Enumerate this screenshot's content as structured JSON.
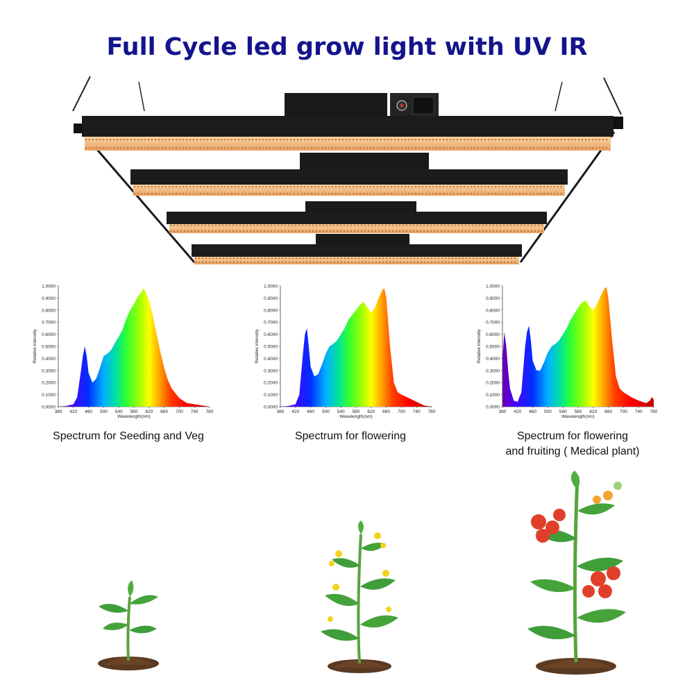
{
  "page": {
    "headline": "Full Cycle led grow light with UV IR"
  },
  "colors": {
    "headline": "#14148c",
    "fixture_body": "#1a1a1a",
    "led_glow": "#f3b878",
    "leaf": "#3f9d3a",
    "soil": "#5b3a22",
    "tomato": "#e0402a",
    "flower": "#f4d21c"
  },
  "icons": [
    "led-fixture-image",
    "seedling-plant-image",
    "flowering-plant-image",
    "fruiting-tomato-plant-image"
  ],
  "chart_data": [
    {
      "type": "area",
      "title": "Spectrum for Seeding and Veg",
      "xlabel": "Wavelength(nm)",
      "ylabel": "Relative intensity",
      "xlim": [
        380,
        780
      ],
      "ylim": [
        0,
        1
      ],
      "x_ticks": [
        "380",
        "420",
        "460",
        "500",
        "540",
        "580",
        "620",
        "660",
        "700",
        "740",
        "780"
      ],
      "y_ticks": [
        "0.0000",
        "0.1000",
        "0.2000",
        "0.3000",
        "0.4000",
        "0.5000",
        "0.6000",
        "0.7000",
        "0.8000",
        "0.9000",
        "1.0000"
      ],
      "grid": false,
      "fill": "rainbow",
      "series": [
        {
          "x": [
            380,
            400,
            420,
            430,
            440,
            445,
            450,
            455,
            460,
            470,
            480,
            490,
            500,
            510,
            520,
            530,
            540,
            550,
            560,
            570,
            580,
            590,
            600,
            605,
            610,
            620,
            630,
            640,
            650,
            660,
            670,
            680,
            700,
            720,
            740,
            760,
            780
          ],
          "y": [
            0,
            0.005,
            0.02,
            0.08,
            0.3,
            0.42,
            0.5,
            0.42,
            0.28,
            0.2,
            0.23,
            0.32,
            0.42,
            0.44,
            0.47,
            0.53,
            0.58,
            0.64,
            0.73,
            0.8,
            0.85,
            0.91,
            0.95,
            0.98,
            0.96,
            0.88,
            0.75,
            0.6,
            0.45,
            0.32,
            0.22,
            0.15,
            0.07,
            0.03,
            0.02,
            0.01,
            0
          ]
        }
      ]
    },
    {
      "type": "area",
      "title": "Spectrum for flowering",
      "xlabel": "Wavelength(nm)",
      "ylabel": "Relative intensity",
      "xlim": [
        380,
        780
      ],
      "ylim": [
        0,
        1
      ],
      "x_ticks": [
        "380",
        "420",
        "460",
        "500",
        "540",
        "580",
        "620",
        "660",
        "700",
        "740",
        "780"
      ],
      "y_ticks": [
        "0.0000",
        "0.1000",
        "0.2000",
        "0.3000",
        "0.4000",
        "0.5000",
        "0.6000",
        "0.7000",
        "0.8000",
        "0.9000",
        "1.0000"
      ],
      "grid": false,
      "fill": "rainbow",
      "series": [
        {
          "x": [
            380,
            400,
            420,
            430,
            440,
            445,
            450,
            455,
            460,
            470,
            480,
            490,
            500,
            510,
            520,
            530,
            540,
            550,
            560,
            570,
            580,
            590,
            600,
            610,
            620,
            630,
            640,
            650,
            655,
            660,
            670,
            680,
            690,
            700,
            720,
            740,
            760,
            780
          ],
          "y": [
            0,
            0.005,
            0.02,
            0.1,
            0.45,
            0.6,
            0.65,
            0.5,
            0.33,
            0.25,
            0.27,
            0.35,
            0.44,
            0.5,
            0.52,
            0.55,
            0.6,
            0.65,
            0.72,
            0.76,
            0.8,
            0.84,
            0.87,
            0.82,
            0.78,
            0.82,
            0.9,
            0.97,
            0.98,
            0.9,
            0.5,
            0.2,
            0.12,
            0.1,
            0.07,
            0.04,
            0.01,
            0
          ]
        }
      ]
    },
    {
      "type": "area",
      "title": "Spectrum for flowering and fruiting ( Medical plant)",
      "xlabel": "Wavelength(nm)",
      "ylabel": "Relative intensity",
      "xlim": [
        380,
        780
      ],
      "ylim": [
        0,
        1
      ],
      "x_ticks": [
        "380",
        "420",
        "460",
        "500",
        "540",
        "580",
        "620",
        "660",
        "700",
        "740",
        "780"
      ],
      "y_ticks": [
        "0.0000",
        "0.1000",
        "0.2000",
        "0.3000",
        "0.4000",
        "0.5000",
        "0.6000",
        "0.7000",
        "0.8000",
        "0.9000",
        "1.0000"
      ],
      "grid": false,
      "fill": "rainbow",
      "series": [
        {
          "x": [
            380,
            385,
            390,
            395,
            400,
            410,
            420,
            430,
            440,
            445,
            450,
            455,
            460,
            470,
            480,
            490,
            500,
            510,
            520,
            530,
            540,
            550,
            560,
            570,
            580,
            590,
            600,
            610,
            620,
            630,
            640,
            650,
            655,
            660,
            670,
            680,
            690,
            700,
            720,
            740,
            760,
            770,
            775,
            780
          ],
          "y": [
            0.4,
            0.62,
            0.5,
            0.3,
            0.15,
            0.05,
            0.04,
            0.12,
            0.5,
            0.62,
            0.67,
            0.55,
            0.38,
            0.3,
            0.3,
            0.37,
            0.45,
            0.5,
            0.52,
            0.55,
            0.6,
            0.65,
            0.72,
            0.77,
            0.82,
            0.86,
            0.88,
            0.83,
            0.8,
            0.85,
            0.92,
            0.98,
            0.99,
            0.9,
            0.55,
            0.25,
            0.15,
            0.12,
            0.08,
            0.05,
            0.03,
            0.05,
            0.08,
            0.06
          ]
        }
      ]
    }
  ],
  "captions": [
    [
      "Spectrum for Seeding and Veg"
    ],
    [
      "Spectrum for flowering"
    ],
    [
      "Spectrum for flowering",
      "and fruiting ( Medical plant)"
    ]
  ]
}
